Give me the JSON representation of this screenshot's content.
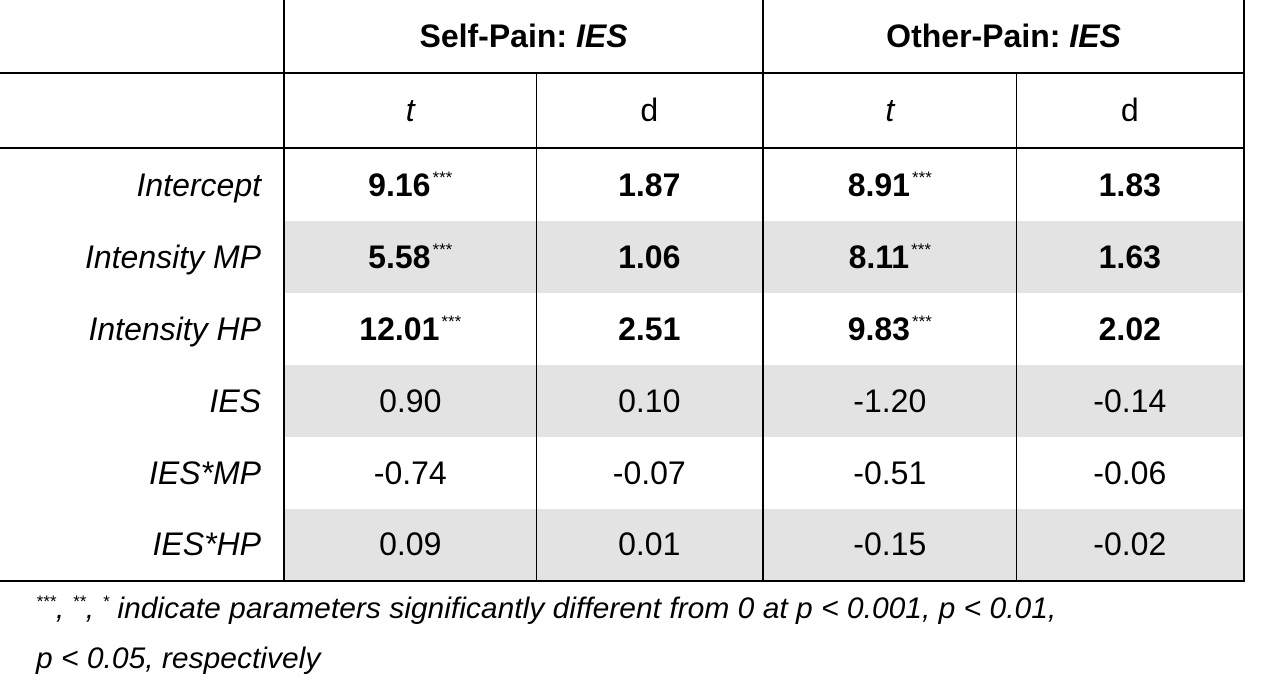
{
  "header": {
    "group1": "Self-Pain: ",
    "group1_italic": "IES",
    "group2": "Other-Pain: ",
    "group2_italic": "IES",
    "sub": [
      "t",
      "d",
      "t",
      "d"
    ]
  },
  "rows": [
    {
      "label": "Intercept",
      "t1": "9.16",
      "t1_sig": "***",
      "d1": "1.87",
      "t2": "8.91",
      "t2_sig": "***",
      "d2": "1.83"
    },
    {
      "label": "Intensity MP",
      "t1": "5.58",
      "t1_sig": "***",
      "d1": "1.06",
      "t2": "8.11",
      "t2_sig": "***",
      "d2": "1.63"
    },
    {
      "label": "Intensity HP",
      "t1": "12.01",
      "t1_sig": "***",
      "d1": "2.51",
      "t2": "9.83",
      "t2_sig": "***",
      "d2": "2.02"
    },
    {
      "label": "IES",
      "t1": "0.90",
      "d1": "0.10",
      "t2": "-1.20",
      "d2": "-0.14"
    },
    {
      "label": "IES*MP",
      "t1": "-0.74",
      "d1": "-0.07",
      "t2": "-0.51",
      "d2": "-0.06"
    },
    {
      "label": "IES*HP",
      "t1": "0.09",
      "d1": "0.01",
      "t2": "-0.15",
      "d2": "-0.02"
    }
  ],
  "footnote": {
    "s3": "***",
    "sep1": ", ",
    "s2": "**",
    "sep2": ", ",
    "s1": "*",
    "text": " indicate parameters significantly different from 0 at p < 0.001, p < 0.01,",
    "text2": "p < 0.05, respectively"
  }
}
